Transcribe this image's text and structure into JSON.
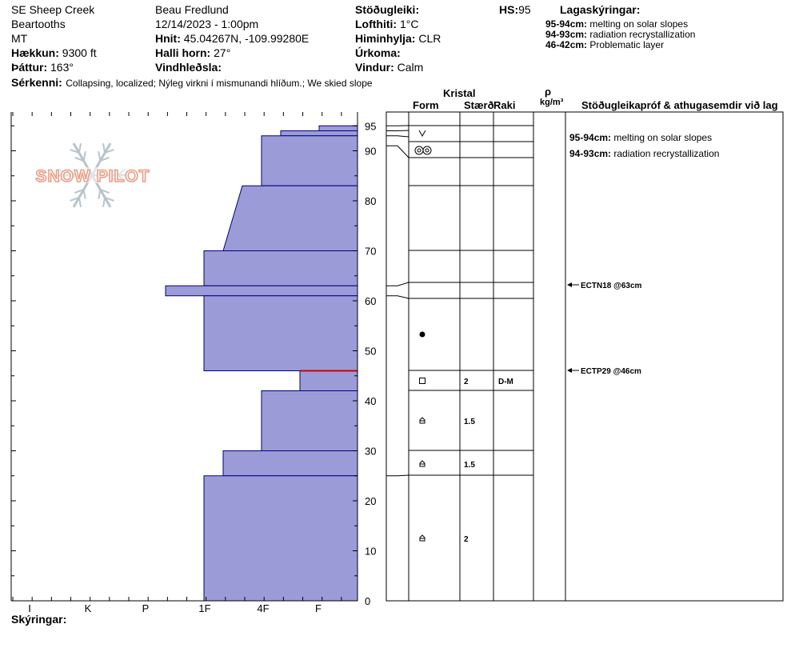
{
  "header": {
    "location": "SE Sheep Creek",
    "range": "Beartooths",
    "state": "MT",
    "elevation_label": "Hækkun:",
    "elevation_value": "9300 ft",
    "aspect_label": "Þáttur:",
    "aspect_value": "163°",
    "observer": "Beau  Fredlund",
    "datetime": "12/14/2023 - 1:00pm",
    "coords_label": "Hnit:",
    "coords_value": "45.04267N, -109.99280E",
    "slope_label": "Halli horn:",
    "slope_value": "27°",
    "wind_loading_label": "Vindhleðsla:",
    "wind_loading_value": "",
    "stability_label": "Stöðugleiki:",
    "stability_value": "",
    "air_temp_label": "Lofthiti:",
    "air_temp_value": "1°C",
    "sky_label": "Himinhylja:",
    "sky_value": "CLR",
    "precip_label": "Úrkoma:",
    "precip_value": "",
    "wind_label": "Vindur:",
    "wind_value": "Calm",
    "hs_label": "HS:",
    "hs_value": "95",
    "layers_notes_title": "Lagaskýringar:",
    "layers_notes": [
      {
        "range": "95-94cm:",
        "text": "melting on solar slopes"
      },
      {
        "range": "94-93cm:",
        "text": "radiation recrystallization"
      },
      {
        "range": "46-42cm:",
        "text": "Problematic layer"
      }
    ],
    "features_label": "Sérkenni:",
    "features_value": "Collapsing, localized;  Nýleg virkni í mismunandi hlíðum.;  We skied slope"
  },
  "columns": {
    "crystal": "Kristal",
    "form": "Form",
    "size": "Stærð",
    "moisture": "Raki",
    "rho": "ρ",
    "density_unit": "kg/m³",
    "tests": "Stöðugleikapróf & athugasemdir við lag"
  },
  "footer": {
    "notes_label": "Skýringar:"
  },
  "logo_text": "SNOW PILOT",
  "colors": {
    "layer_fill": "#9b9bd8",
    "layer_stroke": "#00007f",
    "weak_layer": "#cc0000",
    "logo_text": "#e8a088",
    "logo_flake": "#b8c4cc"
  },
  "chart_data": {
    "type": "bar",
    "title": "",
    "xlabel": "",
    "ylabel": "",
    "ylim": [
      0,
      97
    ],
    "y_ticks": [
      0,
      10,
      20,
      30,
      40,
      50,
      60,
      70,
      80,
      90,
      95
    ],
    "hardness_categories": [
      "F-",
      "F",
      "F+",
      "4F-",
      "4F",
      "4F+",
      "1F-",
      "1F",
      "1F+",
      "P-",
      "P",
      "P+",
      "K-",
      "K",
      "K+",
      "I-",
      "I",
      "I+"
    ],
    "hardness_labels": [
      "I",
      "K",
      "P",
      "1F",
      "4F",
      "F"
    ],
    "layers": [
      {
        "top": 95,
        "bottom": 94,
        "hardness": "F"
      },
      {
        "top": 94,
        "bottom": 93,
        "hardness": "4F-"
      },
      {
        "top": 93,
        "bottom": 83,
        "hardness": "4F"
      },
      {
        "top": 83,
        "bottom": 70,
        "hardness": "1F+ to 4F+"
      },
      {
        "top": 70,
        "bottom": 63,
        "hardness": "1F"
      },
      {
        "top": 63,
        "bottom": 61,
        "hardness": "P-"
      },
      {
        "top": 61,
        "bottom": 46,
        "hardness": "1F"
      },
      {
        "top": 46,
        "bottom": 42,
        "hardness": "F+"
      },
      {
        "top": 42,
        "bottom": 30,
        "hardness": "4F"
      },
      {
        "top": 30,
        "bottom": 25,
        "hardness": "4F+"
      },
      {
        "top": 25,
        "bottom": 0,
        "hardness": "1F"
      }
    ],
    "weak_layer_depth": 46,
    "crystals": [
      {
        "depth": 94.5,
        "form": "surface-form",
        "size": "",
        "moisture": ""
      },
      {
        "depth": 89.5,
        "form": "rounding-form",
        "size": "",
        "moisture": ""
      },
      {
        "depth": 53,
        "form": "precipitation-particles",
        "size": "",
        "moisture": ""
      },
      {
        "depth": 44,
        "form": "faceted-crystals",
        "size": "2",
        "moisture": "D-M"
      },
      {
        "depth": 36,
        "form": "depth-hoar",
        "size": "1.5",
        "moisture": ""
      },
      {
        "depth": 27.5,
        "form": "depth-hoar",
        "size": "1.5",
        "moisture": ""
      },
      {
        "depth": 12.5,
        "form": "depth-hoar",
        "size": "2",
        "moisture": ""
      }
    ],
    "tests": [
      {
        "depth": 63,
        "label": "ECTN18 @63cm"
      },
      {
        "depth": 46,
        "label": "ECTP29 @46cm"
      }
    ],
    "layer_comments": [
      {
        "range": "95-94cm:",
        "text": "melting on solar slopes"
      },
      {
        "range": "94-93cm:",
        "text": "radiation recrystallization"
      }
    ]
  }
}
